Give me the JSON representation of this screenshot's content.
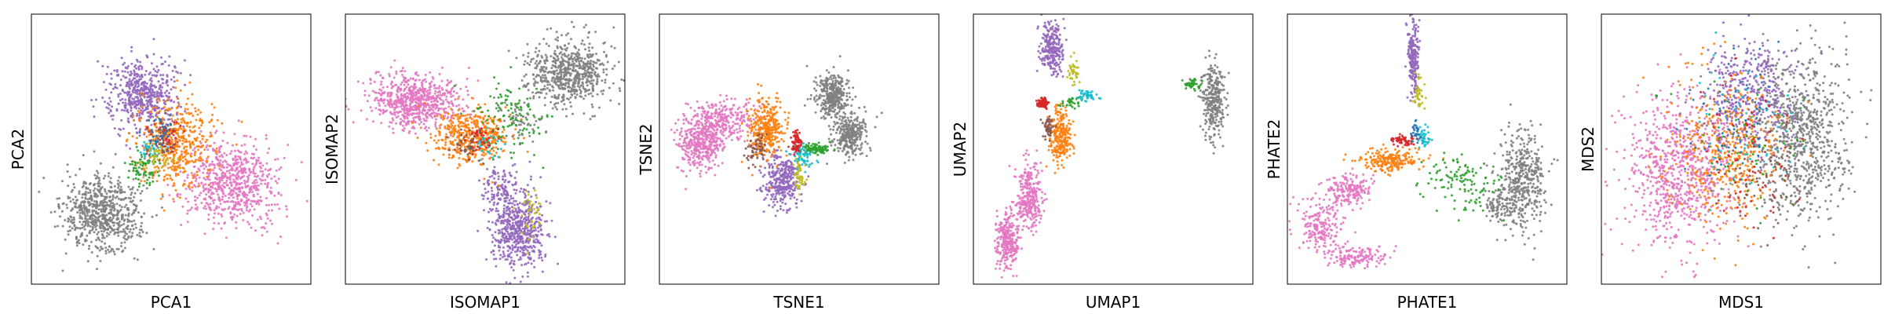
{
  "colors": {
    "grey": "#7f7f7f",
    "pink": "#e377c2",
    "purple": "#9467bd",
    "orange": "#ff7f0e",
    "green": "#2ca02c",
    "red": "#d62728",
    "cyan": "#17becf",
    "olive": "#bcbd22",
    "brown": "#8c564b",
    "blue": "#1f77b4"
  },
  "chart_data": [
    {
      "type": "scatter",
      "title": "",
      "xlabel": "PCA1",
      "ylabel": "PCA2",
      "grid": false,
      "ticks": false,
      "xlim": [
        0,
        100
      ],
      "ylim": [
        0,
        100
      ],
      "series": [
        {
          "color": "grey",
          "clusters": [
            {
              "cx": 25,
              "cy": 26,
              "sx": 7,
              "sy": 7,
              "n": 700
            }
          ]
        },
        {
          "color": "pink",
          "clusters": [
            {
              "cx": 72,
              "cy": 38,
              "sx": 8,
              "sy": 8,
              "n": 700
            }
          ]
        },
        {
          "color": "purple",
          "clusters": [
            {
              "cx": 40,
              "cy": 70,
              "sx": 6,
              "sy": 7,
              "n": 550
            }
          ]
        },
        {
          "color": "orange",
          "clusters": [
            {
              "cx": 52,
              "cy": 52,
              "sx": 7,
              "sy": 8,
              "n": 450
            }
          ]
        },
        {
          "color": "green",
          "clusters": [
            {
              "cx": 40,
              "cy": 43,
              "sx": 3,
              "sy": 3,
              "n": 70
            }
          ]
        },
        {
          "color": "cyan",
          "clusters": [
            {
              "cx": 43,
              "cy": 50,
              "sx": 2,
              "sy": 2,
              "n": 40
            }
          ]
        },
        {
          "color": "red",
          "clusters": [
            {
              "cx": 48,
              "cy": 55,
              "sx": 3,
              "sy": 3,
              "n": 50
            }
          ]
        },
        {
          "color": "olive",
          "clusters": [
            {
              "cx": 45,
              "cy": 47,
              "sx": 3,
              "sy": 3,
              "n": 40
            }
          ]
        },
        {
          "color": "brown",
          "clusters": [
            {
              "cx": 47,
              "cy": 52,
              "sx": 3,
              "sy": 3,
              "n": 40
            }
          ]
        },
        {
          "color": "blue",
          "clusters": [
            {
              "cx": 46,
              "cy": 56,
              "sx": 3,
              "sy": 3,
              "n": 30
            }
          ]
        }
      ]
    },
    {
      "type": "scatter",
      "title": "",
      "xlabel": "ISOMAP1",
      "ylabel": "ISOMAP2",
      "grid": false,
      "ticks": false,
      "xlim": [
        0,
        100
      ],
      "ylim": [
        0,
        100
      ],
      "series": [
        {
          "color": "grey",
          "clusters": [
            {
              "cx": 80,
              "cy": 78,
              "sx": 7,
              "sy": 6,
              "n": 650
            },
            {
              "cx": 65,
              "cy": 62,
              "sx": 5,
              "sy": 5,
              "n": 60
            }
          ]
        },
        {
          "color": "pink",
          "clusters": [
            {
              "cx": 25,
              "cy": 68,
              "sx": 8,
              "sy": 5,
              "n": 700
            }
          ]
        },
        {
          "color": "purple",
          "clusters": [
            {
              "cx": 62,
              "cy": 20,
              "sx": 5,
              "sy": 7,
              "n": 550
            },
            {
              "cx": 55,
              "cy": 35,
              "sx": 3,
              "sy": 4,
              "n": 120
            }
          ]
        },
        {
          "color": "orange",
          "clusters": [
            {
              "cx": 45,
              "cy": 55,
              "sx": 7,
              "sy": 5,
              "n": 450
            }
          ]
        },
        {
          "color": "green",
          "clusters": [
            {
              "cx": 58,
              "cy": 62,
              "sx": 7,
              "sy": 8,
              "n": 120
            }
          ]
        },
        {
          "color": "cyan",
          "clusters": [
            {
              "cx": 50,
              "cy": 52,
              "sx": 3,
              "sy": 3,
              "n": 30
            }
          ]
        },
        {
          "color": "red",
          "clusters": [
            {
              "cx": 48,
              "cy": 54,
              "sx": 3,
              "sy": 3,
              "n": 40
            }
          ]
        },
        {
          "color": "olive",
          "clusters": [
            {
              "cx": 66,
              "cy": 25,
              "sx": 2,
              "sy": 5,
              "n": 40
            }
          ]
        },
        {
          "color": "brown",
          "clusters": [
            {
              "cx": 44,
              "cy": 52,
              "sx": 3,
              "sy": 3,
              "n": 40
            }
          ]
        }
      ]
    },
    {
      "type": "scatter",
      "title": "",
      "xlabel": "TSNE1",
      "ylabel": "TSNE2",
      "grid": false,
      "ticks": false,
      "xlim": [
        0,
        100
      ],
      "ylim": [
        0,
        100
      ],
      "series": [
        {
          "color": "grey",
          "clusters": [
            {
              "cx": 62,
              "cy": 70,
              "sx": 3,
              "sy": 4,
              "n": 350
            },
            {
              "cx": 68,
              "cy": 55,
              "sx": 3,
              "sy": 4,
              "n": 300
            }
          ]
        },
        {
          "color": "pink",
          "clusters": [
            {
              "cx": 14,
              "cy": 52,
              "sx": 4,
              "sy": 5,
              "n": 350
            },
            {
              "cx": 22,
              "cy": 60,
              "sx": 6,
              "sy": 4,
              "n": 300
            }
          ]
        },
        {
          "color": "purple",
          "clusters": [
            {
              "cx": 44,
              "cy": 38,
              "sx": 3,
              "sy": 5,
              "n": 350
            }
          ]
        },
        {
          "color": "orange",
          "clusters": [
            {
              "cx": 38,
              "cy": 58,
              "sx": 3,
              "sy": 5,
              "n": 330
            }
          ]
        },
        {
          "color": "green",
          "clusters": [
            {
              "cx": 56,
              "cy": 50,
              "sx": 3,
              "sy": 1,
              "n": 100
            }
          ]
        },
        {
          "color": "cyan",
          "clusters": [
            {
              "cx": 51,
              "cy": 47,
              "sx": 2,
              "sy": 2,
              "n": 60
            }
          ]
        },
        {
          "color": "red",
          "clusters": [
            {
              "cx": 49,
              "cy": 53,
              "sx": 1,
              "sy": 2,
              "n": 70
            }
          ]
        },
        {
          "color": "olive",
          "clusters": [
            {
              "cx": 50,
              "cy": 40,
              "sx": 1,
              "sy": 3,
              "n": 50
            }
          ]
        },
        {
          "color": "brown",
          "clusters": [
            {
              "cx": 35,
              "cy": 50,
              "sx": 2,
              "sy": 3,
              "n": 60
            }
          ]
        }
      ]
    },
    {
      "type": "scatter",
      "title": "",
      "xlabel": "UMAP1",
      "ylabel": "UMAP2",
      "grid": false,
      "ticks": false,
      "xlim": [
        0,
        100
      ],
      "ylim": [
        0,
        100
      ],
      "series": [
        {
          "color": "grey",
          "clusters": [
            {
              "cx": 86,
              "cy": 68,
              "sx": 2,
              "sy": 7,
              "n": 300
            }
          ]
        },
        {
          "color": "pink",
          "clusters": [
            {
              "cx": 12,
              "cy": 16,
              "sx": 2,
              "sy": 5,
              "n": 280
            },
            {
              "cx": 20,
              "cy": 32,
              "sx": 2.5,
              "sy": 6,
              "n": 300
            }
          ]
        },
        {
          "color": "purple",
          "clusters": [
            {
              "cx": 28,
              "cy": 88,
              "sx": 2,
              "sy": 5,
              "n": 250
            }
          ]
        },
        {
          "color": "orange",
          "clusters": [
            {
              "cx": 31,
              "cy": 55,
              "sx": 2,
              "sy": 5,
              "n": 250
            }
          ]
        },
        {
          "color": "green",
          "clusters": [
            {
              "cx": 78,
              "cy": 74,
              "sx": 2,
              "sy": 1,
              "n": 40
            },
            {
              "cx": 35,
              "cy": 67,
              "sx": 2,
              "sy": 1,
              "n": 30
            }
          ]
        },
        {
          "color": "cyan",
          "clusters": [
            {
              "cx": 40,
              "cy": 70,
              "sx": 2,
              "sy": 1,
              "n": 50
            }
          ]
        },
        {
          "color": "red",
          "clusters": [
            {
              "cx": 25,
              "cy": 67,
              "sx": 1,
              "sy": 1,
              "n": 80
            }
          ]
        },
        {
          "color": "olive",
          "clusters": [
            {
              "cx": 36,
              "cy": 78,
              "sx": 1,
              "sy": 2,
              "n": 40
            }
          ]
        },
        {
          "color": "brown",
          "clusters": [
            {
              "cx": 27,
              "cy": 58,
              "sx": 1,
              "sy": 2,
              "n": 50
            }
          ]
        }
      ]
    },
    {
      "type": "scatter",
      "title": "",
      "xlabel": "PHATE1",
      "ylabel": "PHATE2",
      "grid": false,
      "ticks": false,
      "xlim": [
        0,
        100
      ],
      "ylim": [
        0,
        100
      ],
      "series": [
        {
          "color": "grey",
          "clusters": [
            {
              "cx": 84,
              "cy": 38,
              "sx": 4,
              "sy": 9,
              "n": 450
            },
            {
              "cx": 75,
              "cy": 30,
              "sx": 3,
              "sy": 3,
              "n": 80
            }
          ]
        },
        {
          "color": "pink",
          "clusters": [
            {
              "cx": 12,
              "cy": 22,
              "sx": 4,
              "sy": 5,
              "n": 200
            },
            {
              "cx": 22,
              "cy": 35,
              "sx": 4,
              "sy": 3,
              "n": 180
            },
            {
              "cx": 25,
              "cy": 10,
              "sx": 5,
              "sy": 2,
              "n": 150
            }
          ]
        },
        {
          "color": "purple",
          "clusters": [
            {
              "cx": 45,
              "cy": 85,
              "sx": 1,
              "sy": 7,
              "n": 220
            }
          ]
        },
        {
          "color": "orange",
          "clusters": [
            {
              "cx": 37,
              "cy": 46,
              "sx": 6,
              "sy": 2,
              "n": 220
            }
          ]
        },
        {
          "color": "green",
          "clusters": [
            {
              "cx": 62,
              "cy": 38,
              "sx": 7,
              "sy": 6,
              "n": 120
            }
          ]
        },
        {
          "color": "cyan",
          "clusters": [
            {
              "cx": 49,
              "cy": 54,
              "sx": 1,
              "sy": 2,
              "n": 40
            }
          ]
        },
        {
          "color": "red",
          "clusters": [
            {
              "cx": 42,
              "cy": 53,
              "sx": 2,
              "sy": 1,
              "n": 60
            }
          ]
        },
        {
          "color": "olive",
          "clusters": [
            {
              "cx": 47,
              "cy": 70,
              "sx": 1,
              "sy": 4,
              "n": 40
            }
          ]
        },
        {
          "color": "blue",
          "clusters": [
            {
              "cx": 46,
              "cy": 56,
              "sx": 1,
              "sy": 2,
              "n": 30
            }
          ]
        }
      ]
    },
    {
      "type": "scatter",
      "title": "",
      "xlabel": "MDS1",
      "ylabel": "MDS2",
      "grid": false,
      "ticks": false,
      "xlim": [
        0,
        100
      ],
      "ylim": [
        0,
        100
      ],
      "series": [
        {
          "color": "grey",
          "clusters": [
            {
              "cx": 72,
              "cy": 55,
              "sx": 8,
              "sy": 15,
              "n": 800
            }
          ]
        },
        {
          "color": "pink",
          "clusters": [
            {
              "cx": 28,
              "cy": 42,
              "sx": 10,
              "sy": 14,
              "n": 800
            }
          ]
        },
        {
          "color": "purple",
          "clusters": [
            {
              "cx": 52,
              "cy": 70,
              "sx": 9,
              "sy": 10,
              "n": 450
            }
          ]
        },
        {
          "color": "orange",
          "clusters": [
            {
              "cx": 45,
              "cy": 50,
              "sx": 10,
              "sy": 14,
              "n": 450
            }
          ]
        },
        {
          "color": "green",
          "clusters": [
            {
              "cx": 55,
              "cy": 55,
              "sx": 12,
              "sy": 14,
              "n": 60
            }
          ]
        },
        {
          "color": "cyan",
          "clusters": [
            {
              "cx": 50,
              "cy": 60,
              "sx": 10,
              "sy": 12,
              "n": 60
            }
          ]
        },
        {
          "color": "red",
          "clusters": [
            {
              "cx": 52,
              "cy": 45,
              "sx": 10,
              "sy": 14,
              "n": 80
            }
          ]
        },
        {
          "color": "brown",
          "clusters": [
            {
              "cx": 55,
              "cy": 40,
              "sx": 8,
              "sy": 10,
              "n": 60
            }
          ]
        },
        {
          "color": "blue",
          "clusters": [
            {
              "cx": 48,
              "cy": 60,
              "sx": 10,
              "sy": 12,
              "n": 60
            }
          ]
        }
      ]
    }
  ]
}
